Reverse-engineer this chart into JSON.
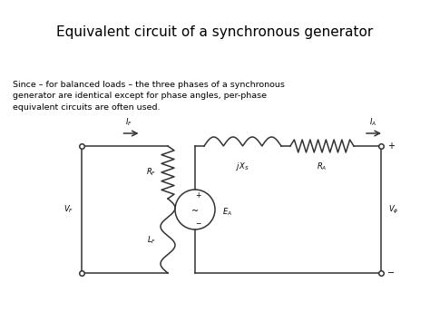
{
  "title": "Equivalent circuit of a synchronous generator",
  "title_bg": "#ddeef6",
  "body_bg": "#ffffff",
  "description": "Since – for balanced loads – the three phases of a synchronous\ngenerator are identical except for phase angles, per-phase\nequivalent circuits are often used.",
  "line_color": "#333333",
  "font_size_title": 11,
  "font_size_body": 6.8,
  "font_size_label": 6.0
}
